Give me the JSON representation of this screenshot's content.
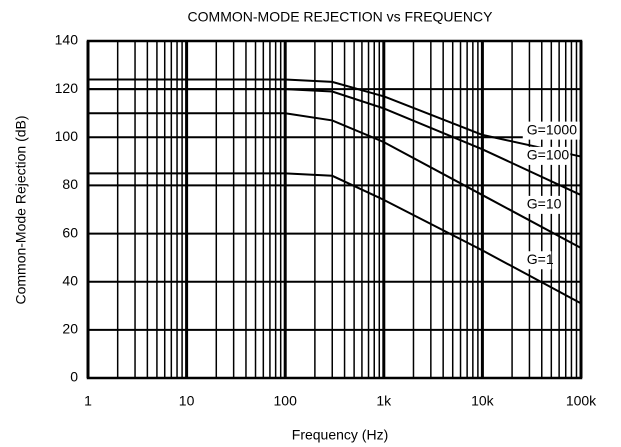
{
  "chart_data": {
    "type": "line",
    "title": "COMMON-MODE REJECTION vs FREQUENCY",
    "x_label": "Frequency (Hz)",
    "y_label": "Common-Mode Rejection (dB)",
    "x_scale": "log",
    "x": [
      1,
      100,
      300,
      1000,
      10000,
      100000
    ],
    "series": [
      {
        "name": "G=1000",
        "color": "#000000",
        "values": [
          124,
          124,
          123,
          117,
          101,
          92
        ]
      },
      {
        "name": "G=100",
        "color": "#000000",
        "values": [
          120,
          120,
          119,
          112,
          95,
          76
        ]
      },
      {
        "name": "G=10",
        "color": "#000000",
        "values": [
          110,
          110,
          107,
          98,
          76,
          54
        ]
      },
      {
        "name": "G=1",
        "color": "#000000",
        "values": [
          85,
          85,
          84,
          74,
          53,
          31
        ]
      }
    ],
    "xlim": [
      1,
      100000
    ],
    "xticks": [
      1,
      10,
      100,
      {
        "value": 1000,
        "label": "1k"
      },
      {
        "value": 10000,
        "label": "10k"
      },
      {
        "value": 100000,
        "label": "100k"
      }
    ],
    "ylim": [
      0,
      140
    ],
    "yticks": [
      0,
      20,
      40,
      60,
      80,
      100,
      120,
      140
    ],
    "grid": true,
    "minor_grid": true
  }
}
